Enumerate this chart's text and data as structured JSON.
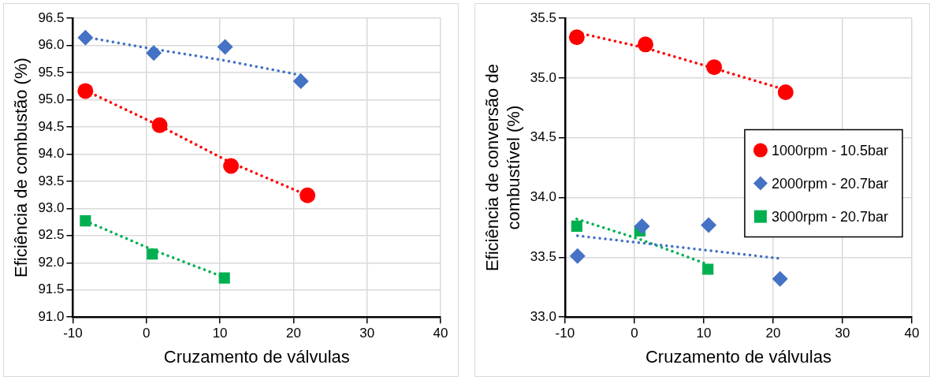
{
  "chart_data": [
    {
      "type": "scatter",
      "xlabel": "Cruzamento de válvulas",
      "ylabel": "Eficiência de combustão (%)",
      "xlim": [
        -10,
        40
      ],
      "xticks": [
        -10,
        0,
        10,
        20,
        30,
        40
      ],
      "ylim": [
        91,
        96.5
      ],
      "yticks": [
        {
          "value": 91,
          "label": "91.0"
        },
        91.5,
        {
          "value": 92,
          "label": "92.0"
        },
        92.5,
        {
          "value": 93,
          "label": "93.0"
        },
        93.5,
        {
          "value": 94,
          "label": "94.0"
        },
        94.5,
        {
          "value": 95,
          "label": "95.0"
        },
        95.5,
        {
          "value": 96,
          "label": "96.0"
        },
        96.5
      ],
      "grid": true,
      "legend": false,
      "series": [
        {
          "type": "scatter",
          "color": "#ff0000",
          "marker": "circle",
          "x": [
            -8.3,
            1.8,
            11.5,
            21.9
          ],
          "values": [
            95.16,
            94.53,
            93.78,
            93.24
          ]
        },
        {
          "type": "scatter",
          "color": "#4472c4",
          "marker": "diamond",
          "x": [
            -8.3,
            1,
            10.7,
            21
          ],
          "values": [
            96.14,
            95.86,
            95.97,
            95.34
          ]
        },
        {
          "type": "scatter",
          "color": "#00b050",
          "marker": "square",
          "x": [
            -8.3,
            0.8,
            10.6
          ],
          "values": [
            92.77,
            92.16,
            91.72
          ]
        },
        {
          "type": "line",
          "color": "#ff0000",
          "marker": "none",
          "line_style": "dotted",
          "x": [
            -8.3,
            1.8,
            11.5,
            21.9
          ],
          "values": [
            95.17,
            94.52,
            93.84,
            93.24
          ]
        },
        {
          "type": "line",
          "color": "#4472c4",
          "marker": "none",
          "line_style": "dotted",
          "x": [
            -8.3,
            1,
            10.7,
            21
          ],
          "values": [
            96.15,
            95.93,
            95.72,
            95.45
          ]
        },
        {
          "type": "line",
          "color": "#00b050",
          "marker": "none",
          "line_style": "dotted",
          "x": [
            -8.3,
            0.8,
            10.6
          ],
          "values": [
            92.77,
            92.24,
            91.73
          ]
        }
      ]
    },
    {
      "type": "scatter",
      "xlabel": "Cruzamento de válvulas",
      "ylabel": "Eficiência de conversão de combustível (%)",
      "xlim": [
        -10,
        40
      ],
      "xticks": [
        -10,
        0,
        10,
        20,
        30,
        40
      ],
      "ylim": [
        33,
        35.5
      ],
      "yticks": [
        {
          "value": 33,
          "label": "33.0"
        },
        33.5,
        {
          "value": 34,
          "label": "34.0"
        },
        34.5,
        {
          "value": 35,
          "label": "35.0"
        },
        35.5
      ],
      "grid": true,
      "legend": "right",
      "series": [
        {
          "type": "scatter",
          "name": "1000rpm - 10.5bar",
          "color": "#ff0000",
          "marker": "circle",
          "x": [
            -8.3,
            1.6,
            11.5,
            21.8
          ],
          "values": [
            35.34,
            35.28,
            35.09,
            34.88
          ]
        },
        {
          "type": "scatter",
          "name": "2000rpm - 20.7bar",
          "color": "#4472c4",
          "marker": "diamond",
          "x": [
            -8.2,
            1.1,
            10.7,
            21
          ],
          "values": [
            33.51,
            33.76,
            33.77,
            33.32
          ]
        },
        {
          "type": "scatter",
          "name": "3000rpm - 20.7bar",
          "color": "#00b050",
          "marker": "square",
          "x": [
            -8.3,
            0.8,
            10.6
          ],
          "values": [
            33.76,
            33.72,
            33.4
          ]
        },
        {
          "type": "line",
          "color": "#ff0000",
          "marker": "none",
          "line_style": "dotted",
          "x": [
            -8.3,
            1.6,
            11.5,
            21.8
          ],
          "values": [
            35.38,
            35.25,
            35.08,
            34.9
          ]
        },
        {
          "type": "line",
          "color": "#4472c4",
          "marker": "none",
          "line_style": "dotted",
          "x": [
            -8.2,
            21
          ],
          "values": [
            33.68,
            33.49
          ]
        },
        {
          "type": "line",
          "color": "#00b050",
          "marker": "none",
          "line_style": "dotted",
          "x": [
            -8.3,
            0.8,
            10.6
          ],
          "values": [
            33.82,
            33.65,
            33.44
          ]
        }
      ]
    }
  ]
}
